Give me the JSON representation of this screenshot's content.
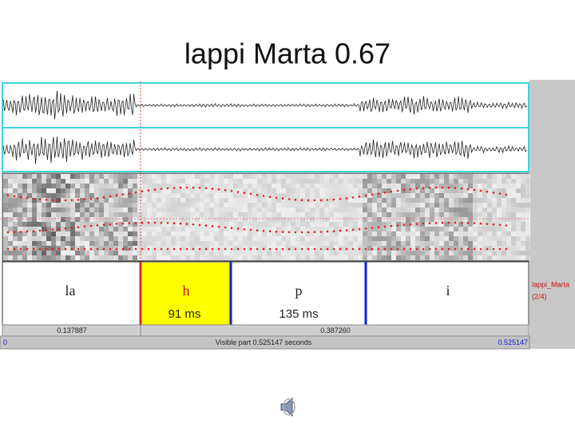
{
  "header": {
    "title": "lappi Marta 0.67"
  },
  "textgrid": {
    "intervals": [
      {
        "label": "la"
      },
      {
        "label": "h",
        "duration": "91 ms"
      },
      {
        "label": "p",
        "duration": "135 ms"
      },
      {
        "label": "i"
      }
    ],
    "tier_name": "lappi_Marta",
    "tier_index": "(2/4)"
  },
  "time_bar": {
    "left_part": "0.137887",
    "right_part": "0.387260"
  },
  "visible_bar": {
    "start": "0",
    "caption": "Visible part 0.525147 seconds",
    "end": "0.525147"
  }
}
